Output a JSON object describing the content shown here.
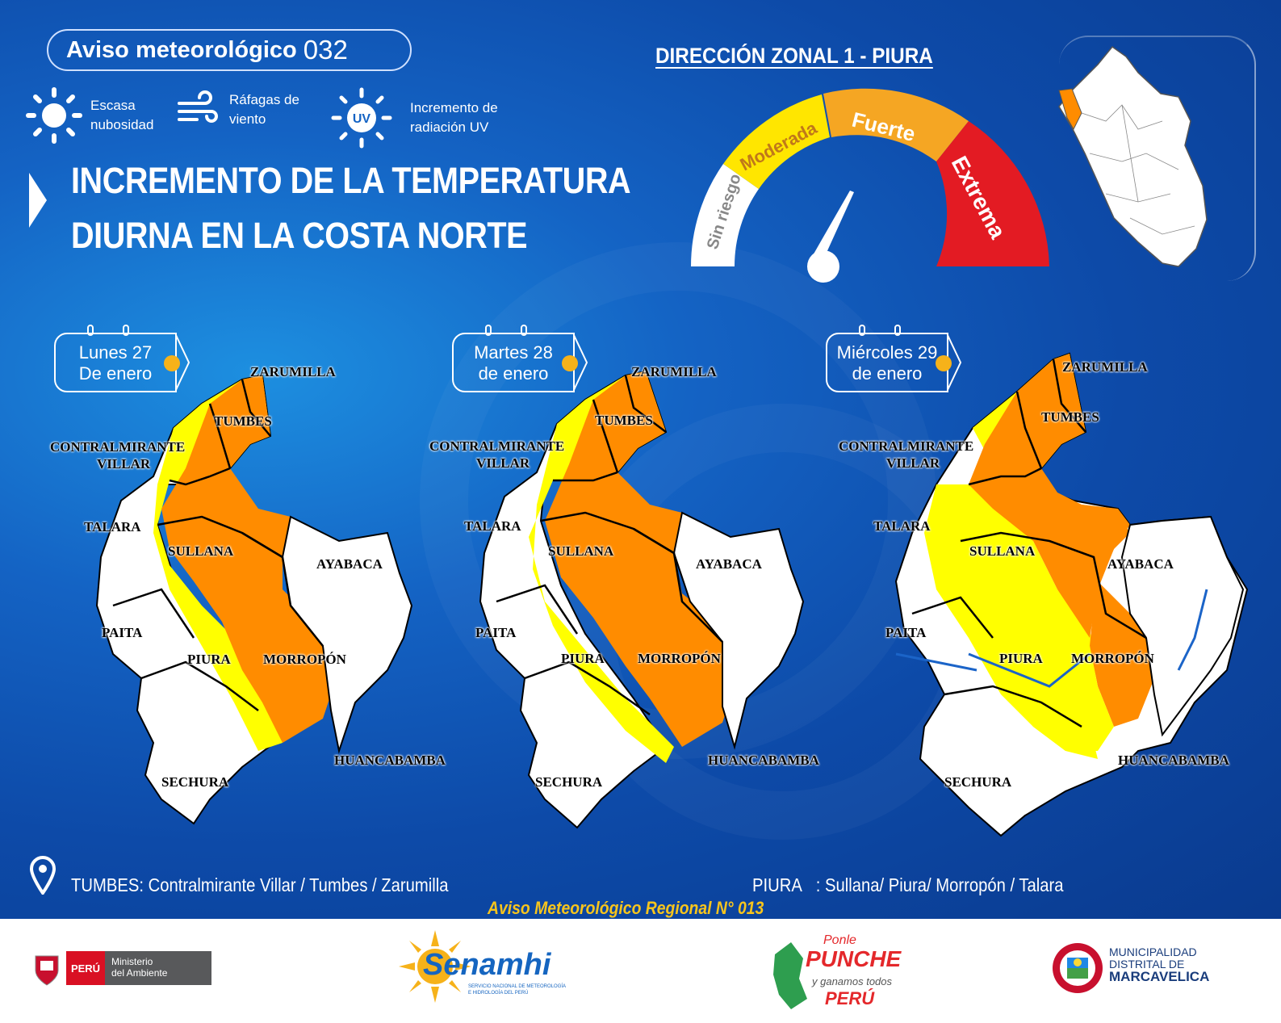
{
  "header": {
    "aviso_label": "Aviso meteorológico",
    "aviso_number": "032",
    "zone": "DIRECCIÓN ZONAL 1 - PIURA",
    "headline_line1": "INCREMENTO DE LA TEMPERATURA",
    "headline_line2": "DIURNA EN LA COSTA NORTE"
  },
  "conditions": [
    {
      "icon": "sun-icon",
      "line1": "Escasa",
      "line2": "nubosidad"
    },
    {
      "icon": "wind-icon",
      "line1": "Ráfagas de",
      "line2": "viento"
    },
    {
      "icon": "uv-icon",
      "line1": "Incremento de",
      "line2": "radiación UV",
      "badge": "UV"
    }
  ],
  "gauge": {
    "levels": [
      "Sin riesgo",
      "Moderada",
      "Fuerte",
      "Extrema"
    ],
    "colors": [
      "#ffffff",
      "#ffe600",
      "#f5a623",
      "#e31b23"
    ],
    "active": "Fuerte"
  },
  "days": [
    {
      "line1": "Lunes 27",
      "line2": "De enero"
    },
    {
      "line1": "Martes 28",
      "line2": "de enero"
    },
    {
      "line1": "Miércoles 29",
      "line2": "de enero"
    }
  ],
  "provinces": {
    "zarumilla": "ZARUMILLA",
    "tumbes": "TUMBES",
    "contralmirante": "CONTRALMIRANTE",
    "villar": "VILLAR",
    "talara": "TALARA",
    "sullana": "SULLANA",
    "ayabaca": "AYABACA",
    "paita": "PAITA",
    "piura": "PIURA",
    "morropon": "MORROPÓN",
    "huancabamba": "HUANCABAMBA",
    "sechura": "SECHURA"
  },
  "footer": {
    "tumbes_label": "TUMBES:",
    "tumbes_list": "Contralmirante Villar / Tumbes / Zarumilla",
    "piura_label": "PIURA",
    "piura_list": ": Sullana/ Piura/ Morropón / Talara",
    "regional": "Aviso Meteorológico Regional N° 013"
  },
  "logos": {
    "peru": "PERÚ",
    "ministerio_line1": "Ministerio",
    "ministerio_line2": "del Ambiente",
    "senamhi": "Senamhi",
    "senamhi_sub1": "SERVICIO NACIONAL DE METEOROLOGÍA",
    "senamhi_sub2": "E HIDROLOGÍA DEL PERÚ",
    "ponle1": "Ponle",
    "ponle2": "PUNCHE",
    "ponle3": "y ganamos todos",
    "ponle4": "PERÚ",
    "muni1": "MUNICIPALIDAD",
    "muni2": "DISTRITAL DE",
    "muni3": "MARCAVELICA"
  },
  "colors": {
    "orange": "#ff8c00",
    "yellow": "#ffff00",
    "white": "#ffffff",
    "gold": "#f6b21a"
  }
}
